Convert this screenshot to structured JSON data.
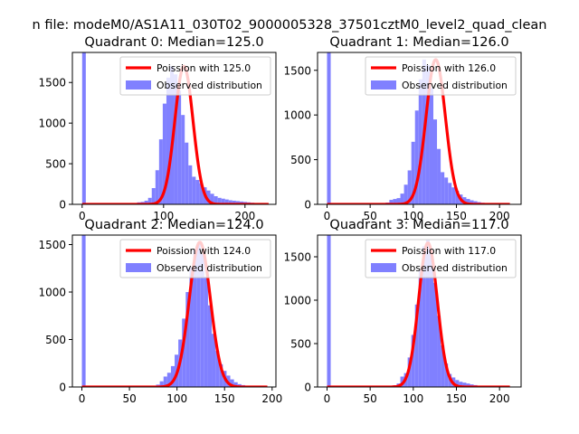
{
  "figure": {
    "suptitle": "n file: modeM0/AS1A11_030T02_9000005328_37501cztM0_level2_quad_clean"
  },
  "chart_data": [
    {
      "type": "bar",
      "title": "Quadrant 0: Median=125.0",
      "median": 125.0,
      "xlim": [
        -12,
        238
      ],
      "ylim": [
        0,
        1870
      ],
      "xticks": [
        0,
        100,
        200
      ],
      "yticks": [
        0,
        500,
        1000,
        1500
      ],
      "grid": false,
      "legend_position": "upper right",
      "legend": [
        {
          "label": "Poission with 125.0",
          "kind": "line",
          "color": "#ff0000"
        },
        {
          "label": "Observed distribution",
          "kind": "patch",
          "color": "#8080ff"
        }
      ],
      "histogram": {
        "bin_edges": [
          0,
          4.5,
          9,
          13.5,
          18,
          22.5,
          27,
          31.5,
          36,
          40.5,
          45,
          49.5,
          54,
          58.5,
          63,
          67.5,
          72,
          76.5,
          81,
          85.5,
          90,
          94.5,
          99,
          103.5,
          108,
          112.5,
          117,
          121.5,
          126,
          130.5,
          135,
          139.5,
          144,
          148.5,
          153,
          157.5,
          162,
          166.5,
          171,
          175.5,
          180,
          184.5,
          189,
          193.5,
          198,
          202.5,
          207,
          211.5,
          216,
          220.5,
          225,
          229.5
        ],
        "counts": [
          1870,
          0,
          0,
          0,
          0,
          0,
          0,
          0,
          0,
          0,
          0,
          0,
          2,
          5,
          15,
          25,
          30,
          45,
          80,
          200,
          420,
          800,
          1240,
          1560,
          1700,
          1600,
          1400,
          1100,
          760,
          480,
          340,
          300,
          260,
          210,
          170,
          130,
          100,
          80,
          70,
          60,
          50,
          45,
          40,
          35,
          30,
          25,
          20,
          15,
          10,
          5,
          5
        ]
      },
      "poisson": {
        "lambda": 125.0,
        "peak": 1700,
        "x_range": [
          0,
          229
        ]
      }
    },
    {
      "type": "bar",
      "title": "Quadrant 1: Median=126.0",
      "median": 126.0,
      "xlim": [
        -11,
        225
      ],
      "ylim": [
        0,
        1700
      ],
      "xticks": [
        0,
        50,
        100,
        150,
        200
      ],
      "yticks": [
        0,
        500,
        1000,
        1500
      ],
      "grid": false,
      "legend_position": "upper right",
      "legend": [
        {
          "label": "Poission with 126.0",
          "kind": "line",
          "color": "#ff0000"
        },
        {
          "label": "Observed distribution",
          "kind": "patch",
          "color": "#8080ff"
        }
      ],
      "histogram": {
        "bin_edges": [
          0,
          4.25,
          8.5,
          12.75,
          17,
          21.25,
          25.5,
          29.75,
          34,
          38.25,
          42.5,
          46.75,
          51,
          55.25,
          59.5,
          63.75,
          68,
          72.25,
          76.5,
          80.75,
          85,
          89.25,
          93.5,
          97.75,
          102,
          106.25,
          110.5,
          114.75,
          119,
          123.25,
          127.5,
          131.75,
          136,
          140.25,
          144.5,
          148.75,
          153,
          157.25,
          161.5,
          165.75,
          170,
          174.25,
          178.5,
          182.75,
          187,
          191.25,
          195.5,
          199.75,
          204,
          208.25,
          212.5
        ],
        "counts": [
          1700,
          0,
          0,
          0,
          0,
          0,
          0,
          0,
          0,
          0,
          0,
          0,
          0,
          2,
          5,
          10,
          20,
          50,
          60,
          70,
          120,
          220,
          380,
          700,
          1050,
          1400,
          1620,
          1560,
          1300,
          950,
          620,
          360,
          300,
          240,
          190,
          150,
          110,
          80,
          60,
          45,
          35,
          25,
          18,
          12,
          8,
          5,
          4,
          3,
          2,
          1
        ]
      },
      "poisson": {
        "lambda": 126.0,
        "peak": 1620,
        "x_range": [
          0,
          212
        ]
      }
    },
    {
      "type": "bar",
      "title": "Quadrant 2: Median=124.0",
      "median": 124.0,
      "xlim": [
        -10,
        204
      ],
      "ylim": [
        0,
        1600
      ],
      "xticks": [
        0,
        50,
        100,
        150,
        200
      ],
      "yticks": [
        0,
        500,
        1000,
        1500
      ],
      "grid": false,
      "legend_position": "upper right",
      "legend": [
        {
          "label": "Poission with 124.0",
          "kind": "line",
          "color": "#ff0000"
        },
        {
          "label": "Observed distribution",
          "kind": "patch",
          "color": "#8080ff"
        }
      ],
      "histogram": {
        "bin_edges": [
          0,
          3.9,
          7.8,
          11.7,
          15.6,
          19.5,
          23.4,
          27.3,
          31.2,
          35.1,
          39,
          42.9,
          46.8,
          50.7,
          54.6,
          58.5,
          62.4,
          66.3,
          70.2,
          74.1,
          78,
          81.9,
          85.8,
          89.7,
          93.6,
          97.5,
          101.4,
          105.3,
          109.2,
          113.1,
          117,
          120.9,
          124.8,
          128.7,
          132.6,
          136.5,
          140.4,
          144.3,
          148.2,
          152.1,
          156,
          159.9,
          163.8,
          167.7,
          171.6,
          175.5,
          179.4,
          183.3,
          187.2,
          191.1,
          195
        ],
        "counts": [
          1600,
          0,
          0,
          0,
          0,
          0,
          0,
          0,
          0,
          0,
          0,
          0,
          0,
          0,
          0,
          0,
          0,
          2,
          5,
          10,
          25,
          60,
          110,
          150,
          220,
          340,
          500,
          720,
          1000,
          1260,
          1450,
          1520,
          1400,
          1160,
          860,
          560,
          380,
          240,
          170,
          120,
          80,
          50,
          30,
          20,
          10,
          5,
          3,
          2,
          1,
          1
        ]
      },
      "poisson": {
        "lambda": 124.0,
        "peak": 1525,
        "x_range": [
          0,
          195
        ]
      }
    },
    {
      "type": "bar",
      "title": "Quadrant 3: Median=117.0",
      "median": 117.0,
      "xlim": [
        -11,
        225
      ],
      "ylim": [
        0,
        1750
      ],
      "xticks": [
        0,
        50,
        100,
        150,
        200
      ],
      "yticks": [
        0,
        500,
        1000,
        1500
      ],
      "grid": false,
      "legend_position": "upper right",
      "legend": [
        {
          "label": "Poission with 117.0",
          "kind": "line",
          "color": "#ff0000"
        },
        {
          "label": "Observed distribution",
          "kind": "patch",
          "color": "#8080ff"
        }
      ],
      "histogram": {
        "bin_edges": [
          0,
          4.25,
          8.5,
          12.75,
          17,
          21.25,
          25.5,
          29.75,
          34,
          38.25,
          42.5,
          46.75,
          51,
          55.25,
          59.5,
          63.75,
          68,
          72.25,
          76.5,
          80.75,
          85,
          89.25,
          93.5,
          97.75,
          102,
          106.25,
          110.5,
          114.75,
          119,
          123.25,
          127.5,
          131.75,
          136,
          140.25,
          144.5,
          148.75,
          153,
          157.25,
          161.5,
          165.75,
          170,
          174.25,
          178.5,
          182.75,
          187,
          191.25,
          195.5,
          199.75,
          204,
          208.25,
          212.5
        ],
        "counts": [
          1750,
          0,
          0,
          0,
          0,
          0,
          0,
          0,
          0,
          0,
          0,
          0,
          0,
          0,
          0,
          0,
          3,
          10,
          20,
          40,
          120,
          160,
          340,
          600,
          950,
          1350,
          1620,
          1700,
          1550,
          1200,
          820,
          480,
          270,
          150,
          110,
          80,
          60,
          50,
          40,
          30,
          22,
          15,
          10,
          6,
          4,
          2,
          1,
          1,
          0,
          0
        ]
      },
      "poisson": {
        "lambda": 117.0,
        "peak": 1660,
        "x_range": [
          0,
          212
        ]
      }
    }
  ],
  "colors": {
    "histogram_fill": "#8080ff",
    "poisson_line": "#ff0000",
    "axes": "#000000",
    "legend_border": "#cccccc"
  }
}
